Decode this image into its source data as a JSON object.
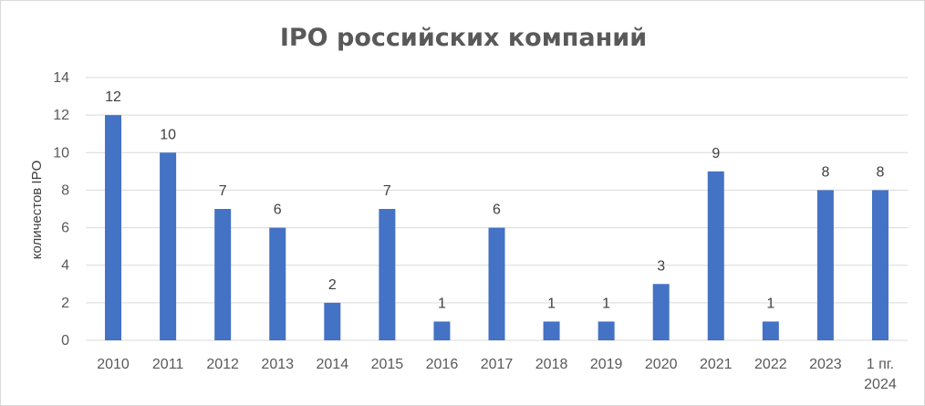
{
  "chart_data": {
    "type": "bar",
    "title": "IPO российских компаний",
    "ylabel": "количестов IPO",
    "xlabel": "",
    "categories": [
      "2010",
      "2011",
      "2012",
      "2013",
      "2014",
      "2015",
      "2016",
      "2017",
      "2018",
      "2019",
      "2020",
      "2021",
      "2022",
      "2023",
      "1 пг. 2024"
    ],
    "category_lines": [
      [
        "2010"
      ],
      [
        "2011"
      ],
      [
        "2012"
      ],
      [
        "2013"
      ],
      [
        "2014"
      ],
      [
        "2015"
      ],
      [
        "2016"
      ],
      [
        "2017"
      ],
      [
        "2018"
      ],
      [
        "2019"
      ],
      [
        "2020"
      ],
      [
        "2021"
      ],
      [
        "2022"
      ],
      [
        "2023"
      ],
      [
        "1 пг.",
        "2024"
      ]
    ],
    "values": [
      12,
      10,
      7,
      6,
      2,
      7,
      1,
      6,
      1,
      1,
      3,
      9,
      1,
      8,
      8
    ],
    "ylim": [
      0,
      14
    ],
    "yticks": [
      "0",
      "2",
      "4",
      "6",
      "8",
      "10",
      "12",
      "14"
    ],
    "grid": true,
    "legend": "none",
    "bar_color": "#4472c4",
    "grid_color": "#d9d9d9"
  }
}
